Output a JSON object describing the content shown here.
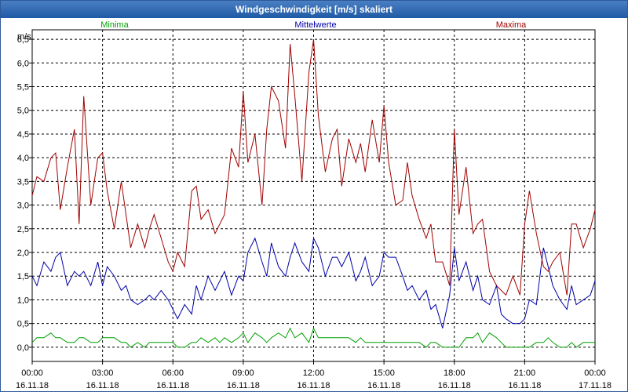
{
  "window": {
    "title": "Windgeschwindigkeit [m/s] skaliert"
  },
  "colors": {
    "min": "#00a000",
    "avg": "#0000aa",
    "max": "#a00000",
    "grid": "#000000",
    "title_bar": "#2a62ad"
  },
  "chart_data": {
    "type": "line",
    "title": "Windgeschwindigkeit [m/s] skaliert",
    "ylabel": "m/s",
    "xlabel": "",
    "ylim": [
      -0.3,
      6.7
    ],
    "xlim": [
      0,
      24
    ],
    "yticks": [
      "0,0",
      "0,5",
      "1,0",
      "1,5",
      "2,0",
      "2,5",
      "3,0",
      "3,5",
      "4,0",
      "4,5",
      "5,0",
      "5,5",
      "6,0",
      "6,5"
    ],
    "ytick_values": [
      0,
      0.5,
      1,
      1.5,
      2,
      2.5,
      3,
      3.5,
      4,
      4.5,
      5,
      5.5,
      6,
      6.5
    ],
    "xticks": [
      {
        "time": "00:00",
        "date": "16.11.18"
      },
      {
        "time": "03:00",
        "date": "16.11.18"
      },
      {
        "time": "06:00",
        "date": "16.11.18"
      },
      {
        "time": "09:00",
        "date": "16.11.18"
      },
      {
        "time": "12:00",
        "date": "16.11.18"
      },
      {
        "time": "15:00",
        "date": "16.11.18"
      },
      {
        "time": "18:00",
        "date": "16.11.18"
      },
      {
        "time": "21:00",
        "date": "16.11.18"
      },
      {
        "time": "00:00",
        "date": "17.11.18"
      }
    ],
    "xtick_values": [
      0,
      3,
      6,
      9,
      12,
      15,
      18,
      21,
      24
    ],
    "grid": true,
    "series": [
      {
        "name": "Minima",
        "color": "#00a000",
        "x": [
          0,
          0.2,
          0.5,
          0.8,
          1.0,
          1.2,
          1.5,
          1.8,
          2.0,
          2.2,
          2.5,
          2.8,
          3.0,
          3.2,
          3.5,
          3.8,
          4.0,
          4.2,
          4.5,
          4.8,
          5.0,
          5.2,
          5.5,
          5.8,
          6.0,
          6.2,
          6.5,
          6.8,
          7.0,
          7.2,
          7.5,
          7.8,
          8.0,
          8.2,
          8.5,
          8.8,
          9.0,
          9.2,
          9.5,
          9.8,
          10.0,
          10.2,
          10.5,
          10.8,
          11.0,
          11.2,
          11.5,
          11.8,
          12.0,
          12.2,
          12.5,
          12.8,
          13.0,
          13.2,
          13.5,
          13.8,
          14.0,
          14.2,
          14.5,
          14.8,
          15.0,
          15.2,
          15.5,
          15.8,
          16.0,
          16.2,
          16.5,
          16.8,
          17.0,
          17.2,
          17.5,
          17.8,
          18.0,
          18.2,
          18.5,
          18.8,
          19.0,
          19.2,
          19.5,
          19.8,
          20.0,
          20.2,
          20.5,
          20.8,
          21.0,
          21.2,
          21.5,
          21.8,
          22.0,
          22.2,
          22.5,
          22.8,
          23.0,
          23.2,
          23.5,
          23.8,
          24.0
        ],
        "values": [
          0.1,
          0.2,
          0.2,
          0.3,
          0.2,
          0.2,
          0.1,
          0.1,
          0.2,
          0.2,
          0.1,
          0.1,
          0.2,
          0.2,
          0.2,
          0.1,
          0.1,
          0.0,
          0.1,
          0.0,
          0.1,
          0.1,
          0.1,
          0.1,
          0.1,
          0.0,
          0.0,
          0.1,
          0.1,
          0.2,
          0.1,
          0.2,
          0.1,
          0.2,
          0.1,
          0.2,
          0.3,
          0.1,
          0.3,
          0.2,
          0.1,
          0.2,
          0.3,
          0.2,
          0.4,
          0.2,
          0.3,
          0.1,
          0.4,
          0.2,
          0.2,
          0.2,
          0.2,
          0.2,
          0.2,
          0.1,
          0.2,
          0.1,
          0.1,
          0.1,
          0.1,
          0.1,
          0.1,
          0.1,
          0.1,
          0.1,
          0.1,
          0.0,
          0.1,
          0.1,
          0.0,
          0.0,
          0.0,
          0.0,
          0.2,
          0.2,
          0.3,
          0.1,
          0.3,
          0.2,
          0.1,
          0.0,
          0.0,
          0.0,
          0.0,
          0.0,
          0.1,
          0.1,
          0.2,
          0.1,
          0.0,
          0.0,
          0.1,
          0.0,
          0.1,
          0.1,
          0.1
        ]
      },
      {
        "name": "Mittelwerte",
        "color": "#0000aa",
        "x": [
          0,
          0.2,
          0.5,
          0.8,
          1.0,
          1.2,
          1.5,
          1.8,
          2.0,
          2.2,
          2.5,
          2.8,
          3.0,
          3.2,
          3.5,
          3.8,
          4.0,
          4.2,
          4.5,
          4.8,
          5.0,
          5.2,
          5.5,
          5.8,
          6.0,
          6.2,
          6.5,
          6.8,
          7.0,
          7.2,
          7.5,
          7.8,
          8.0,
          8.2,
          8.5,
          8.8,
          9.0,
          9.2,
          9.5,
          9.8,
          10.0,
          10.2,
          10.5,
          10.8,
          11.0,
          11.2,
          11.5,
          11.8,
          12.0,
          12.2,
          12.5,
          12.8,
          13.0,
          13.2,
          13.5,
          13.8,
          14.0,
          14.2,
          14.5,
          14.8,
          15.0,
          15.2,
          15.5,
          15.8,
          16.0,
          16.2,
          16.5,
          16.8,
          17.0,
          17.2,
          17.5,
          17.8,
          18.0,
          18.2,
          18.5,
          18.8,
          19.0,
          19.2,
          19.5,
          19.8,
          20.0,
          20.2,
          20.5,
          20.8,
          21.0,
          21.2,
          21.5,
          21.8,
          22.0,
          22.2,
          22.5,
          22.8,
          23.0,
          23.2,
          23.5,
          23.8,
          24.0
        ],
        "values": [
          1.5,
          1.3,
          1.8,
          1.6,
          1.9,
          2.0,
          1.3,
          1.6,
          1.5,
          1.6,
          1.3,
          1.8,
          1.3,
          1.7,
          1.5,
          1.2,
          1.3,
          1.0,
          0.9,
          1.0,
          1.1,
          1.0,
          1.2,
          1.0,
          0.8,
          0.6,
          0.9,
          0.7,
          1.3,
          1.0,
          1.5,
          1.2,
          1.4,
          1.6,
          1.1,
          1.5,
          1.4,
          2.0,
          2.3,
          1.8,
          1.5,
          2.2,
          1.7,
          1.5,
          1.9,
          2.2,
          1.8,
          1.6,
          2.3,
          2.1,
          1.5,
          1.9,
          1.9,
          1.7,
          2.0,
          1.4,
          1.6,
          1.9,
          1.3,
          1.5,
          2.0,
          1.9,
          1.9,
          1.5,
          1.2,
          1.3,
          1.0,
          1.2,
          0.8,
          0.9,
          0.4,
          1.1,
          2.1,
          1.4,
          1.8,
          1.2,
          1.5,
          1.0,
          0.9,
          1.3,
          0.7,
          0.6,
          0.5,
          0.5,
          0.6,
          1.0,
          0.9,
          2.1,
          1.7,
          1.3,
          1.0,
          0.8,
          1.3,
          0.9,
          1.0,
          1.1,
          1.4
        ]
      },
      {
        "name": "Maxima",
        "color": "#a00000",
        "x": [
          0,
          0.2,
          0.5,
          0.8,
          1.0,
          1.2,
          1.5,
          1.8,
          2.0,
          2.2,
          2.5,
          2.8,
          3.0,
          3.2,
          3.5,
          3.8,
          4.0,
          4.2,
          4.5,
          4.8,
          5.0,
          5.2,
          5.5,
          5.8,
          6.0,
          6.2,
          6.5,
          6.8,
          7.0,
          7.2,
          7.5,
          7.8,
          8.0,
          8.2,
          8.5,
          8.8,
          9.0,
          9.2,
          9.5,
          9.8,
          10.0,
          10.2,
          10.5,
          10.8,
          11.0,
          11.2,
          11.5,
          11.8,
          12.0,
          12.2,
          12.5,
          12.8,
          13.0,
          13.2,
          13.5,
          13.8,
          14.0,
          14.2,
          14.5,
          14.8,
          15.0,
          15.2,
          15.5,
          15.8,
          16.0,
          16.2,
          16.5,
          16.8,
          17.0,
          17.2,
          17.5,
          17.8,
          18.0,
          18.2,
          18.5,
          18.8,
          19.0,
          19.2,
          19.5,
          19.8,
          20.0,
          20.2,
          20.5,
          20.8,
          21.0,
          21.2,
          21.5,
          21.8,
          22.0,
          22.2,
          22.5,
          22.8,
          23.0,
          23.2,
          23.5,
          23.8,
          24.0
        ],
        "values": [
          3.2,
          3.6,
          3.5,
          4.0,
          4.1,
          2.9,
          3.8,
          4.6,
          2.6,
          5.3,
          3.0,
          4.0,
          4.1,
          3.3,
          2.5,
          3.5,
          2.8,
          2.1,
          2.6,
          2.1,
          2.5,
          2.8,
          2.3,
          1.8,
          1.6,
          2.0,
          1.7,
          3.3,
          3.4,
          2.7,
          2.9,
          2.4,
          2.6,
          2.8,
          4.2,
          3.8,
          5.4,
          3.9,
          4.5,
          3.0,
          4.6,
          5.5,
          5.2,
          4.2,
          6.4,
          5.3,
          3.5,
          5.8,
          6.5,
          4.9,
          3.7,
          4.4,
          4.6,
          3.4,
          4.4,
          3.9,
          4.3,
          3.7,
          4.8,
          3.9,
          5.1,
          3.9,
          3.0,
          3.1,
          3.9,
          3.2,
          2.7,
          2.3,
          2.6,
          1.8,
          1.8,
          1.3,
          4.6,
          2.8,
          3.8,
          2.4,
          2.6,
          2.7,
          1.6,
          1.3,
          1.2,
          1.1,
          1.5,
          1.1,
          2.6,
          3.3,
          2.4,
          1.7,
          1.6,
          1.8,
          2.0,
          1.1,
          2.6,
          2.6,
          2.1,
          2.5,
          2.9
        ]
      }
    ]
  }
}
